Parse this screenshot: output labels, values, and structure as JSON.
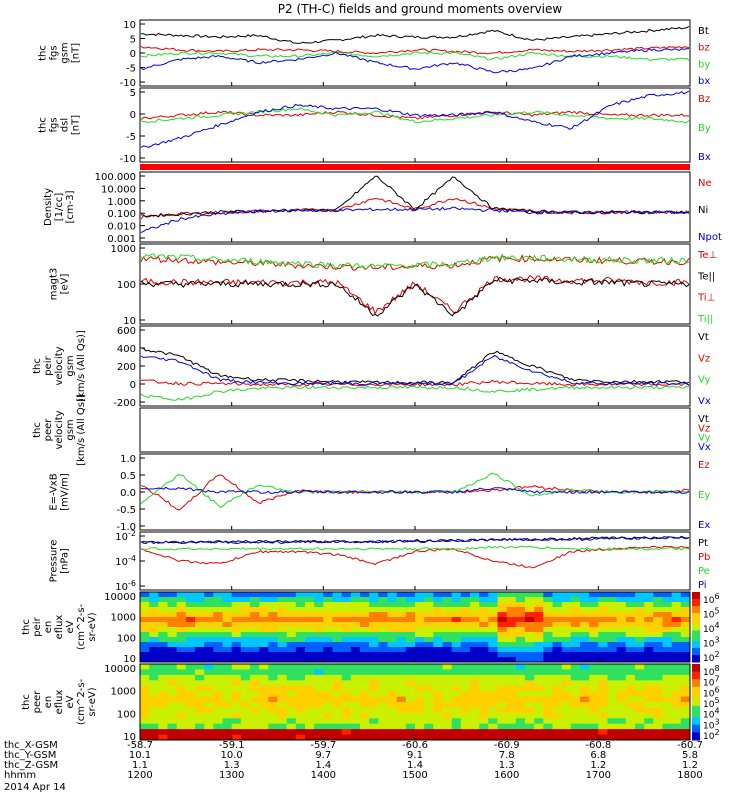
{
  "title": "P2 (TH-C) fields and ground moments overview",
  "colors": {
    "black": "#000000",
    "red": "#e60000",
    "green": "#22dd22",
    "blue": "#0000e6",
    "bar": "#ff0000"
  },
  "x_ticks": [
    "1200",
    "1300",
    "1400",
    "1500",
    "1600",
    "1700",
    "1800"
  ],
  "footer": {
    "rows": [
      {
        "label": "thc_X-GSM",
        "values": [
          "-58.7",
          "-59.1",
          "-59.7",
          "-60.6",
          "-60.9",
          "-60.8",
          "-60.7"
        ]
      },
      {
        "label": "thc_Y-GSM",
        "values": [
          "10.1",
          "10.0",
          "9.7",
          "9.1",
          "7.8",
          "6.8",
          "5.8"
        ]
      },
      {
        "label": "thc_Z-GSM",
        "values": [
          "1.1",
          "1.3",
          "1.4",
          "1.4",
          "1.3",
          "1.2",
          "1.2"
        ]
      },
      {
        "label": "hhmm",
        "values": [
          "1200",
          "1300",
          "1400",
          "1500",
          "1600",
          "1700",
          "1800"
        ]
      }
    ],
    "date": "2014 Apr 14"
  },
  "chart_data": [
    {
      "id": "fgs_gsm",
      "type": "line",
      "ylabel": [
        "thc",
        "fgs",
        "gsm",
        "[nT]"
      ],
      "ylim": [
        -10,
        10
      ],
      "yticks": [
        "10",
        "5",
        "0",
        "-5",
        "-10"
      ],
      "legend": [
        "Bt",
        "bz",
        "by",
        "bx"
      ],
      "series": [
        {
          "name": "Bt",
          "values": [
            6,
            5.5,
            5,
            5.5,
            3,
            4,
            5.5,
            5,
            5,
            7,
            4,
            5,
            6,
            7,
            8
          ]
        },
        {
          "name": "bz",
          "values": [
            2,
            1,
            0.5,
            1,
            1,
            0.5,
            0,
            1,
            0.5,
            0,
            1,
            0.5,
            1,
            1.5,
            2
          ]
        },
        {
          "name": "by",
          "values": [
            -1,
            0,
            0,
            -1,
            -1,
            0,
            -1,
            0,
            0,
            -2,
            0,
            -1,
            -1,
            -2,
            -2
          ]
        },
        {
          "name": "bx",
          "values": [
            -5,
            -2,
            -1,
            -3,
            -2,
            0,
            -3,
            -5,
            -3,
            -6,
            -5,
            -1,
            0,
            1,
            1
          ]
        }
      ]
    },
    {
      "id": "fgs_dsl",
      "type": "line",
      "ylabel": [
        "thc",
        "fgs",
        "dsl",
        "[nT]"
      ],
      "ylim": [
        -14,
        8
      ],
      "yticks": [
        "5",
        "0",
        "-5",
        "-10"
      ],
      "legend": [
        "Bz",
        "By",
        "Bx"
      ],
      "series": [
        {
          "name": "Bz",
          "values": [
            -1,
            0,
            1,
            0,
            0,
            1,
            0,
            -1,
            0,
            1,
            0,
            1,
            0,
            0,
            0
          ]
        },
        {
          "name": "By",
          "values": [
            -2,
            -1,
            0,
            1,
            2,
            0,
            1,
            -2,
            -1,
            0,
            1,
            0,
            -1,
            -1,
            -2
          ]
        },
        {
          "name": "Bx",
          "values": [
            -10,
            -7,
            -3,
            1,
            3,
            2,
            2,
            0,
            0,
            1,
            -2,
            -4,
            3,
            6,
            7
          ]
        }
      ]
    },
    {
      "id": "density",
      "type": "line",
      "scale": "log",
      "ylabel": [
        "Density",
        "[1/cc]",
        "[cm-3]"
      ],
      "ylim": [
        0.001,
        300
      ],
      "yticks": [
        "100.000",
        "10.000",
        "1.000",
        "0.100",
        "0.010",
        "0.001"
      ],
      "legend": [
        "Ne",
        "Ni",
        "Npot"
      ],
      "series": [
        {
          "name": "Ne",
          "values": [
            0.08,
            0.15,
            0.2,
            0.25,
            0.3,
            0.3,
            3,
            0.35,
            3,
            0.4,
            0.25,
            0.2,
            0.2,
            0.22,
            0.2
          ]
        },
        {
          "name": "Ni",
          "values": [
            0.1,
            0.15,
            0.22,
            0.25,
            0.3,
            0.3,
            180,
            0.35,
            150,
            0.4,
            0.25,
            0.2,
            0.2,
            0.22,
            0.2
          ]
        },
        {
          "name": "Npot",
          "values": [
            0.005,
            0.06,
            0.15,
            0.25,
            0.3,
            0.3,
            0.35,
            0.35,
            0.4,
            0.3,
            0.2,
            0.2,
            0.22,
            0.2,
            0.2
          ]
        }
      ]
    },
    {
      "id": "temperature",
      "type": "line",
      "scale": "log",
      "ylabel": [
        "magt3",
        "[eV]"
      ],
      "ylim": [
        3,
        3000
      ],
      "yticks": [
        "1000",
        "100",
        "10"
      ],
      "legend": [
        "Te⊥",
        "Te||",
        "Ti⊥",
        "Ti||"
      ],
      "series": [
        {
          "name": "Te⊥",
          "values": [
            120,
            110,
            110,
            110,
            110,
            110,
            8,
            100,
            8,
            150,
            150,
            130,
            130,
            110,
            110
          ]
        },
        {
          "name": "Te||",
          "values": [
            100,
            95,
            95,
            95,
            95,
            95,
            6,
            90,
            6,
            130,
            130,
            110,
            110,
            95,
            95
          ]
        },
        {
          "name": "Ti⊥",
          "values": [
            900,
            800,
            650,
            600,
            500,
            450,
            400,
            450,
            500,
            900,
            900,
            800,
            750,
            700,
            700
          ]
        },
        {
          "name": "Ti||",
          "values": [
            1100,
            1000,
            800,
            700,
            600,
            500,
            450,
            500,
            550,
            1000,
            950,
            850,
            800,
            750,
            750
          ]
        }
      ]
    },
    {
      "id": "peir_velocity",
      "type": "line",
      "ylabel": [
        "thc",
        "peir",
        "velocity",
        "gsm",
        "[km/s (All Qs)]"
      ],
      "ylim": [
        -200,
        600
      ],
      "yticks": [
        "600",
        "400",
        "200",
        "0",
        "-200"
      ],
      "legend": [
        "Vt",
        "Vz",
        "Vy",
        "Vx"
      ],
      "series": [
        {
          "name": "Vt",
          "values": [
            380,
            300,
            100,
            60,
            50,
            40,
            30,
            30,
            30,
            350,
            200,
            60,
            40,
            40,
            40
          ]
        },
        {
          "name": "Vz",
          "values": [
            50,
            20,
            20,
            10,
            10,
            10,
            10,
            10,
            10,
            40,
            20,
            10,
            10,
            10,
            10
          ]
        },
        {
          "name": "Vy",
          "values": [
            -100,
            -150,
            -60,
            -30,
            -20,
            -20,
            -20,
            -20,
            -20,
            -60,
            -40,
            -20,
            -20,
            -20,
            -20
          ]
        },
        {
          "name": "Vx",
          "values": [
            300,
            250,
            60,
            30,
            20,
            20,
            20,
            20,
            20,
            300,
            150,
            30,
            20,
            20,
            20
          ]
        }
      ]
    },
    {
      "id": "peer_velocity",
      "type": "line",
      "ylabel": [
        "thc",
        "peer",
        "velocity",
        "gsm",
        "[km/s (All Qs)]"
      ],
      "ylim": [
        0,
        1
      ],
      "yticks": [],
      "legend": [
        "Vt",
        "Vz",
        "Vy",
        "Vx"
      ],
      "series": []
    },
    {
      "id": "efield",
      "type": "line",
      "ylabel": [
        "E=-VxB",
        "[mV/m]"
      ],
      "ylim": [
        -1,
        1
      ],
      "yticks": [
        "1.0",
        "0.5",
        "0.0",
        "-0.5",
        "-1.0"
      ],
      "legend": [
        "Ez",
        "Ey",
        "Ex"
      ],
      "series": [
        {
          "name": "Ez",
          "values": [
            0.2,
            -0.5,
            0.5,
            -0.3,
            0.05,
            0,
            0,
            0,
            0,
            0.05,
            0.15,
            0.05,
            0,
            0,
            0.05
          ]
        },
        {
          "name": "Ey",
          "values": [
            -0.3,
            0.5,
            -0.4,
            0.2,
            0,
            0,
            0,
            0,
            0,
            0.5,
            -0.1,
            0.05,
            0,
            0,
            0
          ]
        },
        {
          "name": "Ex",
          "values": [
            0.1,
            0.1,
            0,
            0,
            0,
            0,
            0,
            0,
            0,
            0.1,
            0,
            0,
            0,
            0,
            0
          ]
        }
      ]
    },
    {
      "id": "pressure",
      "type": "line",
      "scale": "log",
      "ylabel": [
        "Pressure",
        "[nPa]"
      ],
      "ylim": [
        1e-07,
        0.1
      ],
      "yticks": [
        "10^-2",
        "10^-4",
        "10^-6"
      ],
      "legend": [
        "Pt",
        "Pb",
        "Pe",
        "Pi"
      ],
      "series": [
        {
          "name": "Pt",
          "values": [
            0.01,
            0.01,
            0.012,
            0.012,
            0.012,
            0.012,
            0.012,
            0.015,
            0.015,
            0.02,
            0.02,
            0.025,
            0.03,
            0.03,
            0.035
          ]
        },
        {
          "name": "Pb",
          "values": [
            0.002,
            0.0001,
            5e-05,
            0.001,
            0.001,
            0.0005,
            5e-05,
            0.001,
            0.002,
            0.0001,
            2e-05,
            0.001,
            0.002,
            0.003,
            0.003
          ]
        },
        {
          "name": "Pe",
          "values": [
            0.002,
            0.002,
            0.002,
            0.002,
            0.002,
            0.002,
            0.002,
            0.002,
            0.002,
            0.003,
            0.003,
            0.002,
            0.002,
            0.002,
            0.002
          ]
        },
        {
          "name": "Pi",
          "values": [
            0.01,
            0.01,
            0.01,
            0.01,
            0.01,
            0.012,
            0.012,
            0.012,
            0.015,
            0.02,
            0.02,
            0.02,
            0.025,
            0.03,
            0.03
          ]
        }
      ]
    },
    {
      "id": "peir_spec",
      "type": "heatmap",
      "ylabel": [
        "thc",
        "peir",
        "en",
        "eflux",
        "eV",
        "(cm^2-s-",
        "sr-eV)"
      ],
      "yticks": [
        "10000",
        "1000",
        "100",
        "10"
      ],
      "colorbar_ticks": [
        "10^6",
        "10^5",
        "10^4",
        "10^3",
        "10^2"
      ]
    },
    {
      "id": "peer_spec",
      "type": "heatmap",
      "ylabel": [
        "thc",
        "peer",
        "en",
        "eflux",
        "eV",
        "(cm^2-s-",
        "sr-eV)"
      ],
      "yticks": [
        "10000",
        "1000",
        "100",
        "10"
      ],
      "colorbar_ticks": [
        "10^8",
        "10^7",
        "10^6",
        "10^5",
        "10^4",
        "10^3",
        "10^2"
      ]
    }
  ]
}
